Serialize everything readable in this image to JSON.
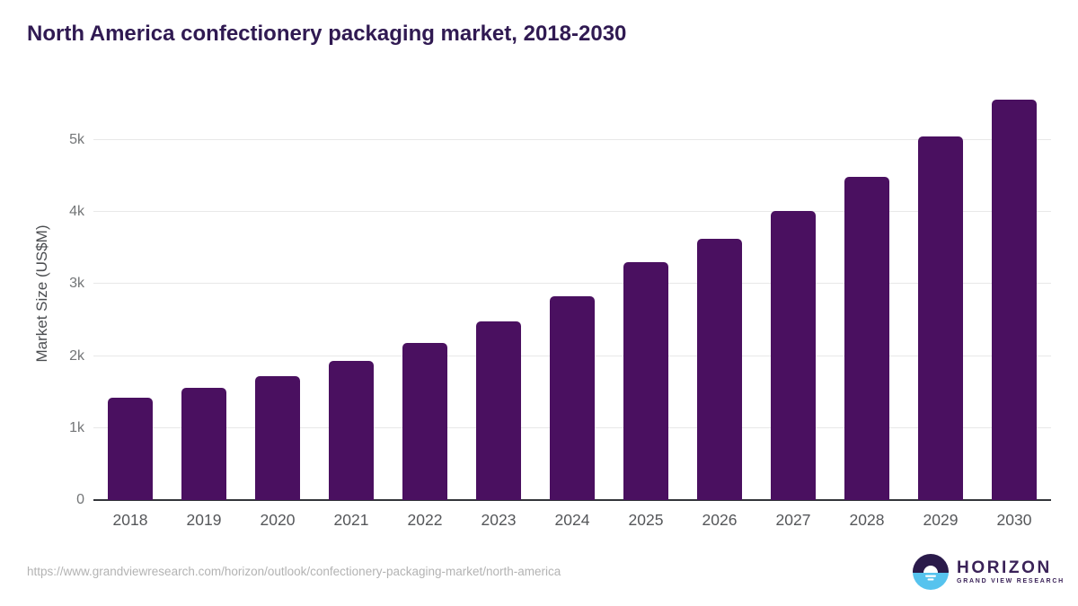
{
  "chart_data": {
    "type": "bar",
    "title": "North America confectionery packaging market, 2018-2030",
    "ylabel": "Market Size (US$M)",
    "xlabel": "",
    "categories": [
      "2018",
      "2019",
      "2020",
      "2021",
      "2022",
      "2023",
      "2024",
      "2025",
      "2026",
      "2027",
      "2028",
      "2029",
      "2030"
    ],
    "values": [
      1420,
      1560,
      1725,
      1935,
      2185,
      2480,
      2835,
      3310,
      3635,
      4015,
      4490,
      5055,
      5565
    ],
    "ylim": [
      0,
      5750
    ],
    "ytick_values": [
      0,
      1000,
      2000,
      3000,
      4000,
      5000
    ],
    "ytick_labels": [
      "0",
      "1k",
      "2k",
      "3k",
      "4k",
      "5k"
    ],
    "grid": true,
    "legend": false,
    "bar_color": "#4a1060"
  },
  "footer": {
    "url": "https://www.grandviewresearch.com/horizon/outlook/confectionery-packaging-market/north-america",
    "logo": {
      "name": "HORIZON",
      "subtitle": "GRAND VIEW RESEARCH",
      "icon": "horizon-sunrise-circle-icon"
    }
  },
  "colors": {
    "title": "#301a52",
    "bar": "#4a1060",
    "logo_purple": "#3a2258",
    "logo_purple_dark": "#2a1a4a",
    "logo_blue": "#56c3ee"
  }
}
